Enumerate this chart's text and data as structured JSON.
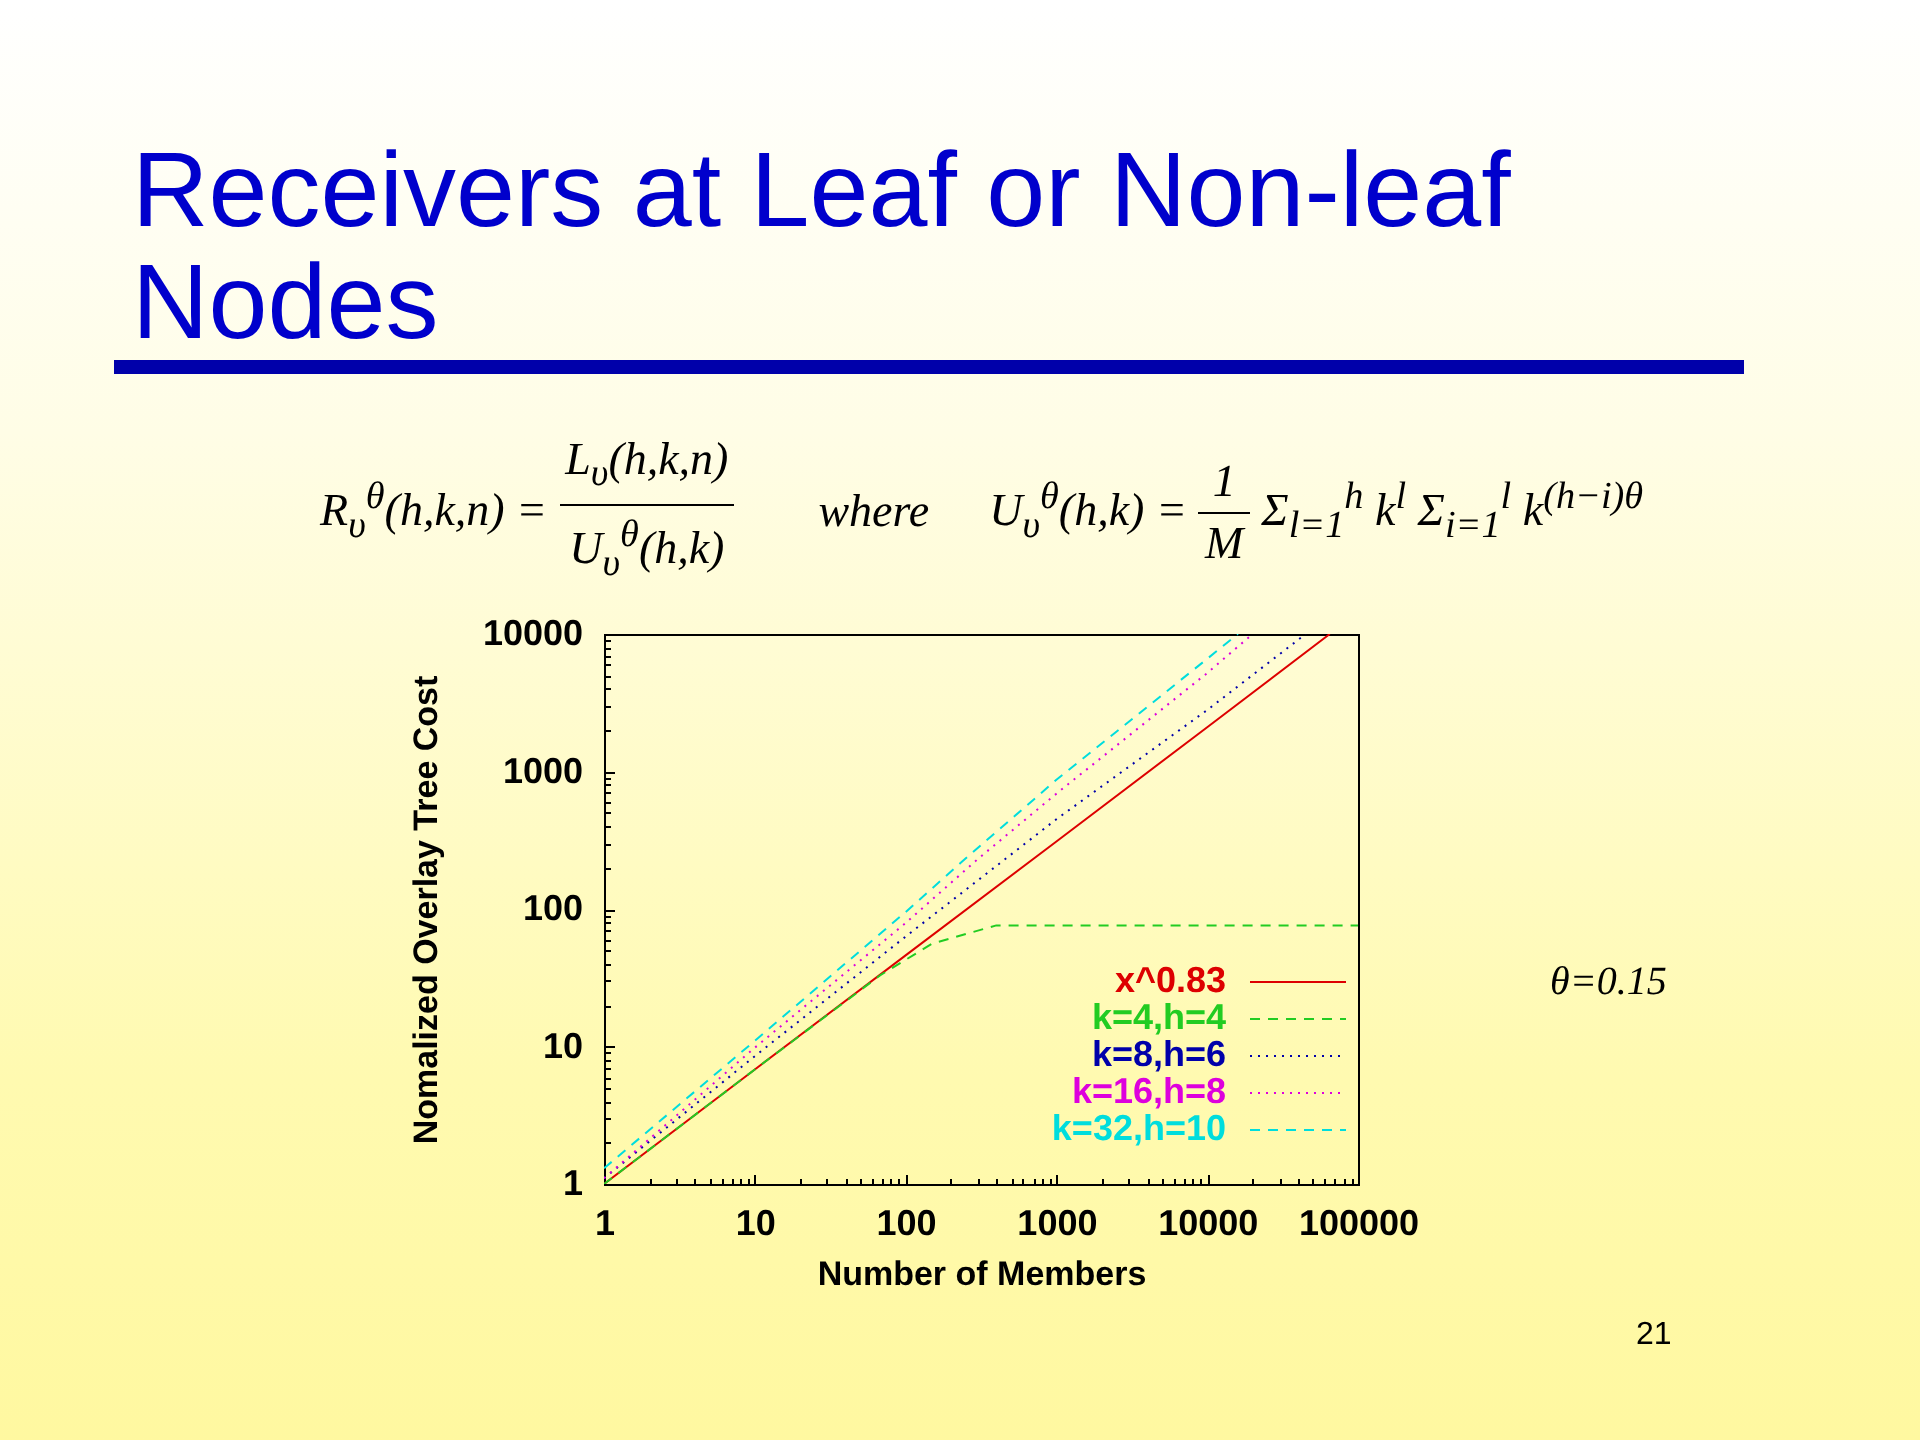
{
  "chart_data": {
    "type": "line",
    "title": "Receivers at Leaf or Non-leaf Nodes",
    "xlabel": "Number of Members",
    "ylabel": "Nomalized Overlay Tree Cost",
    "log": "xy",
    "xlim": [
      1,
      100000
    ],
    "ylim": [
      1,
      10000
    ],
    "xticks": [
      1,
      {
        "value": 2,
        "label": null
      },
      {
        "value": 3,
        "label": null
      },
      {
        "value": 4,
        "label": null
      },
      {
        "value": 5,
        "label": null
      },
      {
        "value": 6,
        "label": null
      },
      {
        "value": 7,
        "label": null
      },
      {
        "value": 8,
        "label": null
      },
      {
        "value": 9,
        "label": null
      },
      10,
      {
        "value": 20,
        "label": null
      },
      {
        "value": 30,
        "label": null
      },
      {
        "value": 40,
        "label": null
      },
      {
        "value": 50,
        "label": null
      },
      {
        "value": 60,
        "label": null
      },
      {
        "value": 70,
        "label": null
      },
      {
        "value": 80,
        "label": null
      },
      {
        "value": 90,
        "label": null
      },
      100,
      {
        "value": 200,
        "label": null
      },
      {
        "value": 300,
        "label": null
      },
      {
        "value": 400,
        "label": null
      },
      {
        "value": 500,
        "label": null
      },
      {
        "value": 600,
        "label": null
      },
      {
        "value": 700,
        "label": null
      },
      {
        "value": 800,
        "label": null
      },
      {
        "value": 900,
        "label": null
      },
      1000,
      {
        "value": 2000,
        "label": null
      },
      {
        "value": 3000,
        "label": null
      },
      {
        "value": 4000,
        "label": null
      },
      {
        "value": 5000,
        "label": null
      },
      {
        "value": 6000,
        "label": null
      },
      {
        "value": 7000,
        "label": null
      },
      {
        "value": 8000,
        "label": null
      },
      {
        "value": 9000,
        "label": null
      },
      10000,
      {
        "value": 20000,
        "label": null
      },
      {
        "value": 30000,
        "label": null
      },
      {
        "value": 40000,
        "label": null
      },
      {
        "value": 50000,
        "label": null
      },
      {
        "value": 60000,
        "label": null
      },
      {
        "value": 70000,
        "label": null
      },
      {
        "value": 80000,
        "label": null
      },
      {
        "value": 90000,
        "label": null
      },
      100000
    ],
    "yticks": [
      1,
      {
        "value": 2,
        "label": null
      },
      {
        "value": 3,
        "label": null
      },
      {
        "value": 4,
        "label": null
      },
      {
        "value": 5,
        "label": null
      },
      {
        "value": 6,
        "label": null
      },
      {
        "value": 7,
        "label": null
      },
      {
        "value": 8,
        "label": null
      },
      {
        "value": 9,
        "label": null
      },
      10,
      {
        "value": 20,
        "label": null
      },
      {
        "value": 30,
        "label": null
      },
      {
        "value": 40,
        "label": null
      },
      {
        "value": 50,
        "label": null
      },
      {
        "value": 60,
        "label": null
      },
      {
        "value": 70,
        "label": null
      },
      {
        "value": 80,
        "label": null
      },
      {
        "value": 90,
        "label": null
      },
      100,
      {
        "value": 200,
        "label": null
      },
      {
        "value": 300,
        "label": null
      },
      {
        "value": 400,
        "label": null
      },
      {
        "value": 500,
        "label": null
      },
      {
        "value": 600,
        "label": null
      },
      {
        "value": 700,
        "label": null
      },
      {
        "value": 800,
        "label": null
      },
      {
        "value": 900,
        "label": null
      },
      1000,
      {
        "value": 2000,
        "label": null
      },
      {
        "value": 3000,
        "label": null
      },
      {
        "value": 4000,
        "label": null
      },
      {
        "value": 5000,
        "label": null
      },
      {
        "value": 6000,
        "label": null
      },
      {
        "value": 7000,
        "label": null
      },
      {
        "value": 8000,
        "label": null
      },
      {
        "value": 9000,
        "label": null
      },
      10000
    ],
    "legend": "bottom right",
    "series": [
      {
        "name": "x^0.83",
        "color": "#dd0000",
        "line_style": "solid",
        "x": [
          1,
          10,
          100,
          1000,
          10000,
          65000
        ],
        "values": [
          1,
          6.8,
          46,
          310,
          2100,
          10000
        ]
      },
      {
        "name": "k=4,h=4",
        "color": "#22cc22",
        "line_style": "dashed",
        "x": [
          1,
          10,
          68,
          150,
          400,
          1000,
          10000,
          100000
        ],
        "values": [
          1,
          6.8,
          33,
          56,
          76,
          76,
          76,
          76
        ]
      },
      {
        "name": "k=8,h=6",
        "color": "#0000aa",
        "line_style": "dotted",
        "x": [
          1,
          10,
          100,
          1000,
          10000,
          45000
        ],
        "values": [
          1.1,
          8.5,
          63,
          450,
          2800,
          10000
        ]
      },
      {
        "name": "k=16,h=8",
        "color": "#dd00dd",
        "line_style": "dotted",
        "x": [
          1,
          10,
          100,
          300,
          1000,
          10000,
          20000
        ],
        "values": [
          1.1,
          9.8,
          79,
          230,
          690,
          5200,
          10000
        ]
      },
      {
        "name": "k=32,h=10",
        "color": "#00dddd",
        "line_style": "dashed",
        "x": [
          1,
          10,
          100,
          230,
          1000,
          10000,
          16000
        ],
        "values": [
          1.3,
          11,
          95,
          215,
          870,
          6600,
          10000
        ]
      }
    ],
    "annotations": [
      "R$_{υ}$$^{θ}$(h,k,n) =",
      "L$_{υ}$(h,k,n)",
      "U$_{υ}$$^{θ}$(h,k)",
      "where",
      "U$_{υ}$$^{θ}$(h,k) =",
      "1",
      "M",
      "Σ$_{l=1}$$^{h}$ k$^{l}$ Σ$_{i=1}$$^{l}$ k$^{(h−i)θ}$",
      "θ=0.15",
      "21"
    ]
  }
}
